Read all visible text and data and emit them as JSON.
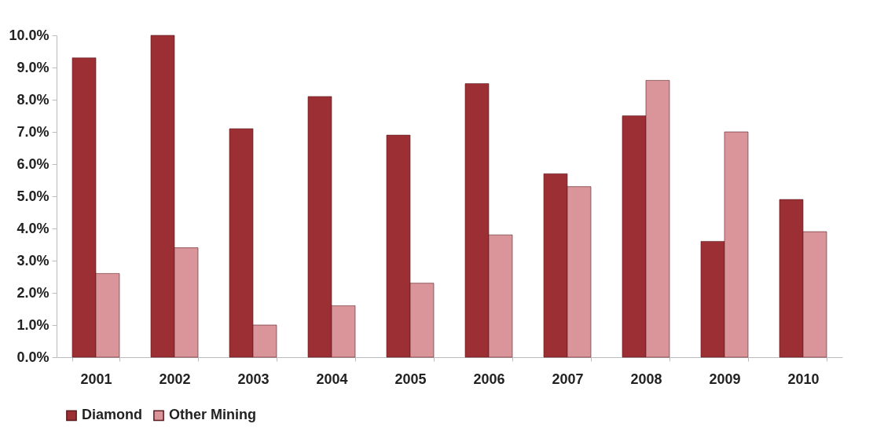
{
  "chart_data": {
    "type": "bar",
    "categories": [
      "2001",
      "2002",
      "2003",
      "2004",
      "2005",
      "2006",
      "2007",
      "2008",
      "2009",
      "2010"
    ],
    "series": [
      {
        "name": "Diamond",
        "color": "#9b2f33",
        "values": [
          9.3,
          10.0,
          7.1,
          8.1,
          6.9,
          8.5,
          5.7,
          7.5,
          3.6,
          4.9
        ]
      },
      {
        "name": "Other Mining",
        "color": "#d9959a",
        "values": [
          2.6,
          3.4,
          1.0,
          1.6,
          2.3,
          3.8,
          5.3,
          8.6,
          7.0,
          3.9
        ]
      }
    ],
    "ylim": [
      0,
      10
    ],
    "yticks": [
      {
        "value": 0,
        "label": "0.0%"
      },
      {
        "value": 1,
        "label": "1.0%"
      },
      {
        "value": 2,
        "label": "2.0%"
      },
      {
        "value": 3,
        "label": "3.0%"
      },
      {
        "value": 4,
        "label": "4.0%"
      },
      {
        "value": 5,
        "label": "5.0%"
      },
      {
        "value": 6,
        "label": "6.0%"
      },
      {
        "value": 7,
        "label": "7.0%"
      },
      {
        "value": 8,
        "label": "8.0%"
      },
      {
        "value": 9,
        "label": "9.0%"
      },
      {
        "value": 10,
        "label": "10.0%"
      }
    ],
    "grid": false,
    "legend": "bottom"
  }
}
